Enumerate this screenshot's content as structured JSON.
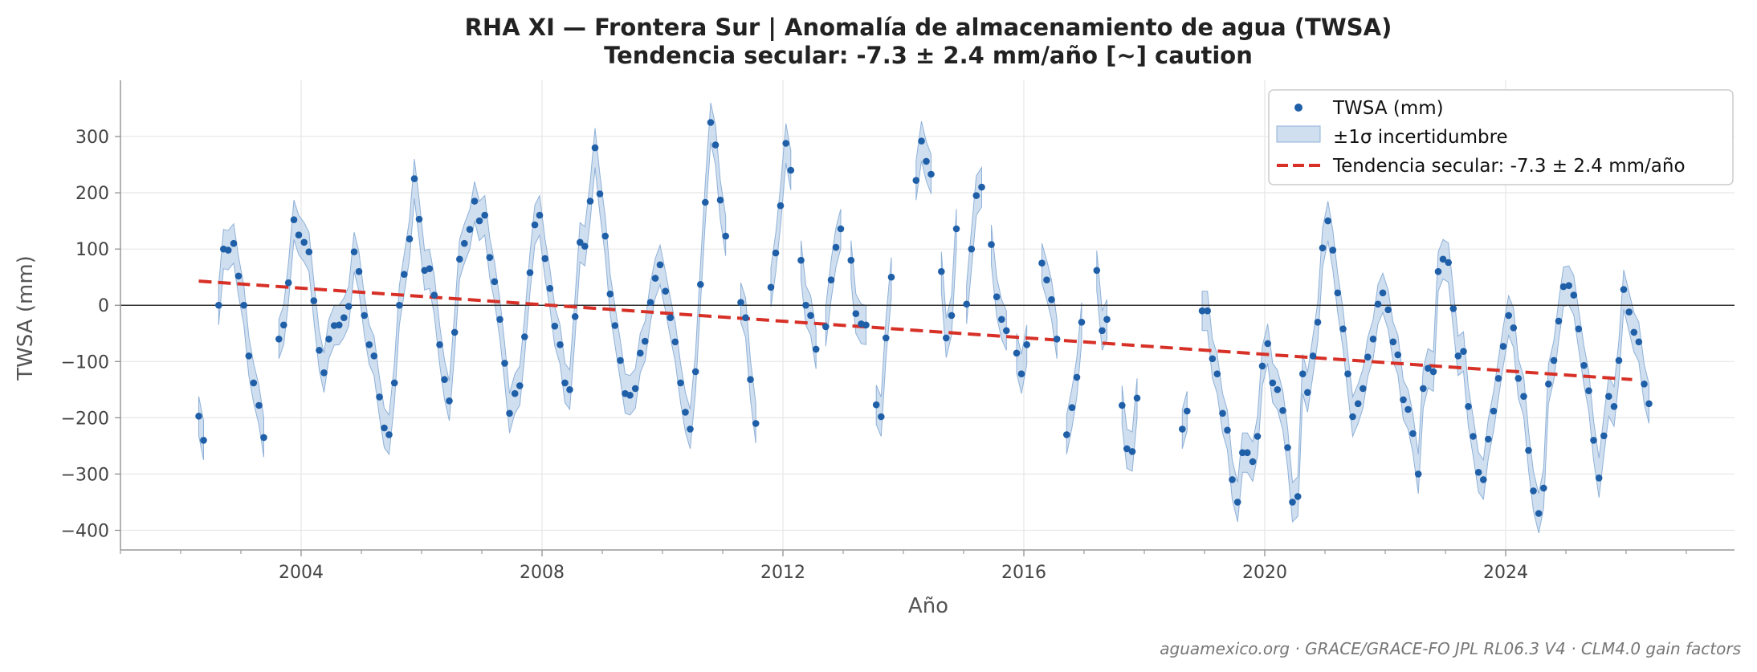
{
  "chart_data": {
    "type": "scatter",
    "title": "RHA XI — Frontera Sur  |  Anomalía de almacenamiento de agua (TWSA)",
    "subtitle": "Tendencia secular: -7.3 ± 2.4 mm/año  [~] caution",
    "xlabel": "Año",
    "ylabel": "TWSA (mm)",
    "xlim": [
      2001.0,
      2027.8
    ],
    "ylim": [
      -435,
      400
    ],
    "x_ticks": [
      2004,
      2008,
      2012,
      2016,
      2020,
      2024
    ],
    "y_ticks": [
      -400,
      -300,
      -200,
      -100,
      0,
      100,
      200,
      300
    ],
    "grid": true,
    "legend_position": "top-right",
    "source_note": "aguamexico.org · GRACE/GRACE-FO JPL RL06.3 V4 · CLM4.0 gain factors",
    "colors": {
      "points": "#1f5fa8",
      "band": "#a9c4e2",
      "band_edge": "#8fb1d8",
      "trend": "#d73027",
      "zero_line": "#333333"
    },
    "legend": [
      {
        "label": "TWSA (mm)",
        "kind": "points"
      },
      {
        "label": "±1σ incertidumbre",
        "kind": "band"
      },
      {
        "label": "Tendencia secular: -7.3 ± 2.4 mm/año",
        "kind": "trend"
      }
    ],
    "trend": {
      "name": "Tendencia secular: -7.3 ± 2.4 mm/año",
      "x": [
        2002.3,
        2026.1
      ],
      "y": [
        43,
        -132
      ]
    },
    "series": [
      {
        "name": "TWSA (mm)",
        "sigma": 35,
        "segments": [
          [
            [
              2002.3,
              -197
            ],
            [
              2002.38,
              -240
            ]
          ],
          [
            [
              2002.63,
              0
            ],
            [
              2002.71,
              100
            ],
            [
              2002.79,
              98
            ],
            [
              2002.88,
              110
            ],
            [
              2002.96,
              52
            ],
            [
              2003.05,
              0
            ],
            [
              2003.13,
              -90
            ],
            [
              2003.21,
              -138
            ],
            [
              2003.3,
              -178
            ],
            [
              2003.38,
              -235
            ]
          ],
          [
            [
              2003.63,
              -60
            ],
            [
              2003.71,
              -35
            ],
            [
              2003.79,
              40
            ],
            [
              2003.88,
              152
            ],
            [
              2003.96,
              125
            ],
            [
              2004.05,
              112
            ],
            [
              2004.13,
              95
            ],
            [
              2004.21,
              8
            ],
            [
              2004.3,
              -80
            ],
            [
              2004.38,
              -120
            ],
            [
              2004.46,
              -60
            ],
            [
              2004.55,
              -36
            ],
            [
              2004.63,
              -35
            ],
            [
              2004.71,
              -22
            ],
            [
              2004.79,
              -2
            ],
            [
              2004.88,
              95
            ],
            [
              2004.96,
              60
            ],
            [
              2005.05,
              -18
            ],
            [
              2005.13,
              -70
            ],
            [
              2005.21,
              -90
            ],
            [
              2005.3,
              -163
            ],
            [
              2005.38,
              -218
            ],
            [
              2005.46,
              -230
            ],
            [
              2005.55,
              -138
            ],
            [
              2005.63,
              0
            ],
            [
              2005.71,
              55
            ],
            [
              2005.8,
              118
            ],
            [
              2005.88,
              225
            ],
            [
              2005.96,
              153
            ],
            [
              2006.05,
              62
            ],
            [
              2006.13,
              65
            ],
            [
              2006.21,
              18
            ],
            [
              2006.3,
              -70
            ],
            [
              2006.38,
              -132
            ],
            [
              2006.46,
              -170
            ],
            [
              2006.55,
              -48
            ],
            [
              2006.63,
              82
            ],
            [
              2006.71,
              110
            ],
            [
              2006.8,
              135
            ],
            [
              2006.88,
              185
            ],
            [
              2006.96,
              150
            ],
            [
              2007.05,
              160
            ],
            [
              2007.13,
              85
            ],
            [
              2007.21,
              42
            ],
            [
              2007.3,
              -25
            ],
            [
              2007.38,
              -103
            ],
            [
              2007.46,
              -192
            ],
            [
              2007.55,
              -157
            ],
            [
              2007.63,
              -143
            ],
            [
              2007.71,
              -56
            ],
            [
              2007.8,
              58
            ],
            [
              2007.88,
              143
            ],
            [
              2007.96,
              160
            ],
            [
              2008.05,
              83
            ],
            [
              2008.13,
              30
            ],
            [
              2008.21,
              -37
            ],
            [
              2008.3,
              -70
            ],
            [
              2008.38,
              -138
            ],
            [
              2008.46,
              -150
            ],
            [
              2008.55,
              -20
            ],
            [
              2008.63,
              112
            ],
            [
              2008.71,
              105
            ],
            [
              2008.8,
              185
            ],
            [
              2008.88,
              280
            ],
            [
              2008.96,
              198
            ],
            [
              2009.05,
              123
            ],
            [
              2009.13,
              20
            ],
            [
              2009.21,
              -36
            ],
            [
              2009.3,
              -98
            ],
            [
              2009.38,
              -157
            ],
            [
              2009.46,
              -160
            ],
            [
              2009.55,
              -148
            ],
            [
              2009.63,
              -85
            ],
            [
              2009.71,
              -64
            ],
            [
              2009.8,
              5
            ],
            [
              2009.88,
              48
            ],
            [
              2009.96,
              72
            ],
            [
              2010.05,
              25
            ],
            [
              2010.13,
              -22
            ],
            [
              2010.21,
              -65
            ],
            [
              2010.3,
              -138
            ],
            [
              2010.38,
              -190
            ],
            [
              2010.46,
              -220
            ],
            [
              2010.55,
              -118
            ],
            [
              2010.63,
              37
            ],
            [
              2010.71,
              183
            ],
            [
              2010.8,
              325
            ],
            [
              2010.88,
              285
            ],
            [
              2010.96,
              187
            ],
            [
              2011.05,
              123
            ]
          ],
          [
            [
              2011.3,
              5
            ],
            [
              2011.38,
              -22
            ],
            [
              2011.46,
              -132
            ],
            [
              2011.55,
              -210
            ]
          ],
          [
            [
              2011.8,
              32
            ],
            [
              2011.88,
              93
            ],
            [
              2011.96,
              177
            ],
            [
              2012.05,
              288
            ],
            [
              2012.13,
              240
            ]
          ],
          [
            [
              2012.3,
              80
            ],
            [
              2012.38,
              0
            ],
            [
              2012.46,
              -18
            ],
            [
              2012.55,
              -78
            ]
          ],
          [
            [
              2012.71,
              -38
            ],
            [
              2012.8,
              45
            ],
            [
              2012.88,
              103
            ],
            [
              2012.96,
              136
            ]
          ],
          [
            [
              2013.13,
              80
            ],
            [
              2013.21,
              -15
            ],
            [
              2013.3,
              -33
            ],
            [
              2013.38,
              -35
            ]
          ],
          [
            [
              2013.55,
              -177
            ],
            [
              2013.63,
              -198
            ],
            [
              2013.71,
              -58
            ],
            [
              2013.8,
              50
            ]
          ],
          [
            [
              2014.21,
              222
            ],
            [
              2014.3,
              292
            ],
            [
              2014.38,
              256
            ],
            [
              2014.46,
              233
            ]
          ],
          [
            [
              2014.63,
              60
            ],
            [
              2014.71,
              -58
            ],
            [
              2014.8,
              -18
            ],
            [
              2014.88,
              136
            ]
          ],
          [
            [
              2015.05,
              2
            ],
            [
              2015.13,
              100
            ],
            [
              2015.21,
              195
            ],
            [
              2015.3,
              210
            ]
          ],
          [
            [
              2015.46,
              108
            ],
            [
              2015.55,
              15
            ],
            [
              2015.63,
              -25
            ],
            [
              2015.71,
              -45
            ]
          ],
          [
            [
              2015.88,
              -85
            ],
            [
              2015.96,
              -122
            ],
            [
              2016.05,
              -70
            ]
          ],
          [
            [
              2016.3,
              75
            ],
            [
              2016.38,
              45
            ],
            [
              2016.46,
              10
            ],
            [
              2016.55,
              -60
            ]
          ],
          [
            [
              2016.71,
              -230
            ],
            [
              2016.8,
              -182
            ],
            [
              2016.88,
              -128
            ],
            [
              2016.96,
              -30
            ]
          ],
          [
            [
              2017.21,
              62
            ],
            [
              2017.3,
              -45
            ],
            [
              2017.38,
              -25
            ]
          ],
          [
            [
              2017.63,
              -178
            ],
            [
              2017.71,
              -255
            ],
            [
              2017.8,
              -260
            ],
            [
              2017.88,
              -165
            ]
          ],
          [
            [
              2018.63,
              -220
            ],
            [
              2018.71,
              -188
            ]
          ],
          [
            [
              2018.96,
              -10
            ],
            [
              2019.05,
              -10
            ],
            [
              2019.13,
              -95
            ],
            [
              2019.21,
              -122
            ],
            [
              2019.3,
              -192
            ],
            [
              2019.38,
              -222
            ],
            [
              2019.46,
              -310
            ],
            [
              2019.55,
              -350
            ],
            [
              2019.63,
              -262
            ],
            [
              2019.71,
              -262
            ],
            [
              2019.8,
              -278
            ],
            [
              2019.88,
              -233
            ],
            [
              2019.96,
              -108
            ],
            [
              2020.05,
              -68
            ],
            [
              2020.13,
              -138
            ],
            [
              2020.21,
              -150
            ],
            [
              2020.3,
              -187
            ],
            [
              2020.38,
              -253
            ],
            [
              2020.46,
              -350
            ],
            [
              2020.55,
              -340
            ],
            [
              2020.63,
              -122
            ],
            [
              2020.71,
              -155
            ],
            [
              2020.8,
              -90
            ],
            [
              2020.88,
              -30
            ],
            [
              2020.96,
              102
            ],
            [
              2021.05,
              150
            ],
            [
              2021.13,
              98
            ],
            [
              2021.21,
              22
            ],
            [
              2021.3,
              -42
            ],
            [
              2021.38,
              -122
            ],
            [
              2021.46,
              -198
            ],
            [
              2021.55,
              -175
            ],
            [
              2021.63,
              -148
            ],
            [
              2021.71,
              -92
            ],
            [
              2021.8,
              -60
            ],
            [
              2021.88,
              2
            ],
            [
              2021.96,
              22
            ],
            [
              2022.05,
              -8
            ],
            [
              2022.13,
              -65
            ],
            [
              2022.21,
              -88
            ],
            [
              2022.3,
              -168
            ],
            [
              2022.38,
              -185
            ],
            [
              2022.46,
              -228
            ],
            [
              2022.55,
              -300
            ],
            [
              2022.63,
              -148
            ],
            [
              2022.71,
              -112
            ],
            [
              2022.8,
              -118
            ],
            [
              2022.88,
              60
            ],
            [
              2022.96,
              82
            ],
            [
              2023.05,
              76
            ],
            [
              2023.13,
              -6
            ],
            [
              2023.21,
              -90
            ],
            [
              2023.3,
              -82
            ],
            [
              2023.38,
              -180
            ],
            [
              2023.46,
              -233
            ],
            [
              2023.55,
              -297
            ],
            [
              2023.63,
              -310
            ],
            [
              2023.71,
              -238
            ],
            [
              2023.8,
              -188
            ],
            [
              2023.88,
              -130
            ],
            [
              2023.96,
              -73
            ],
            [
              2024.05,
              -18
            ],
            [
              2024.13,
              -40
            ],
            [
              2024.21,
              -130
            ],
            [
              2024.3,
              -162
            ],
            [
              2024.38,
              -258
            ],
            [
              2024.46,
              -330
            ],
            [
              2024.55,
              -370
            ],
            [
              2024.63,
              -325
            ],
            [
              2024.71,
              -140
            ],
            [
              2024.8,
              -98
            ],
            [
              2024.88,
              -28
            ],
            [
              2024.96,
              33
            ],
            [
              2025.05,
              35
            ],
            [
              2025.13,
              18
            ],
            [
              2025.21,
              -42
            ],
            [
              2025.3,
              -107
            ],
            [
              2025.38,
              -152
            ],
            [
              2025.46,
              -240
            ],
            [
              2025.55,
              -307
            ],
            [
              2025.63,
              -232
            ],
            [
              2025.71,
              -162
            ],
            [
              2025.8,
              -180
            ],
            [
              2025.88,
              -98
            ],
            [
              2025.96,
              28
            ],
            [
              2026.05,
              -12
            ],
            [
              2026.13,
              -48
            ],
            [
              2026.21,
              -65
            ],
            [
              2026.3,
              -140
            ],
            [
              2026.38,
              -175
            ]
          ]
        ]
      }
    ]
  }
}
